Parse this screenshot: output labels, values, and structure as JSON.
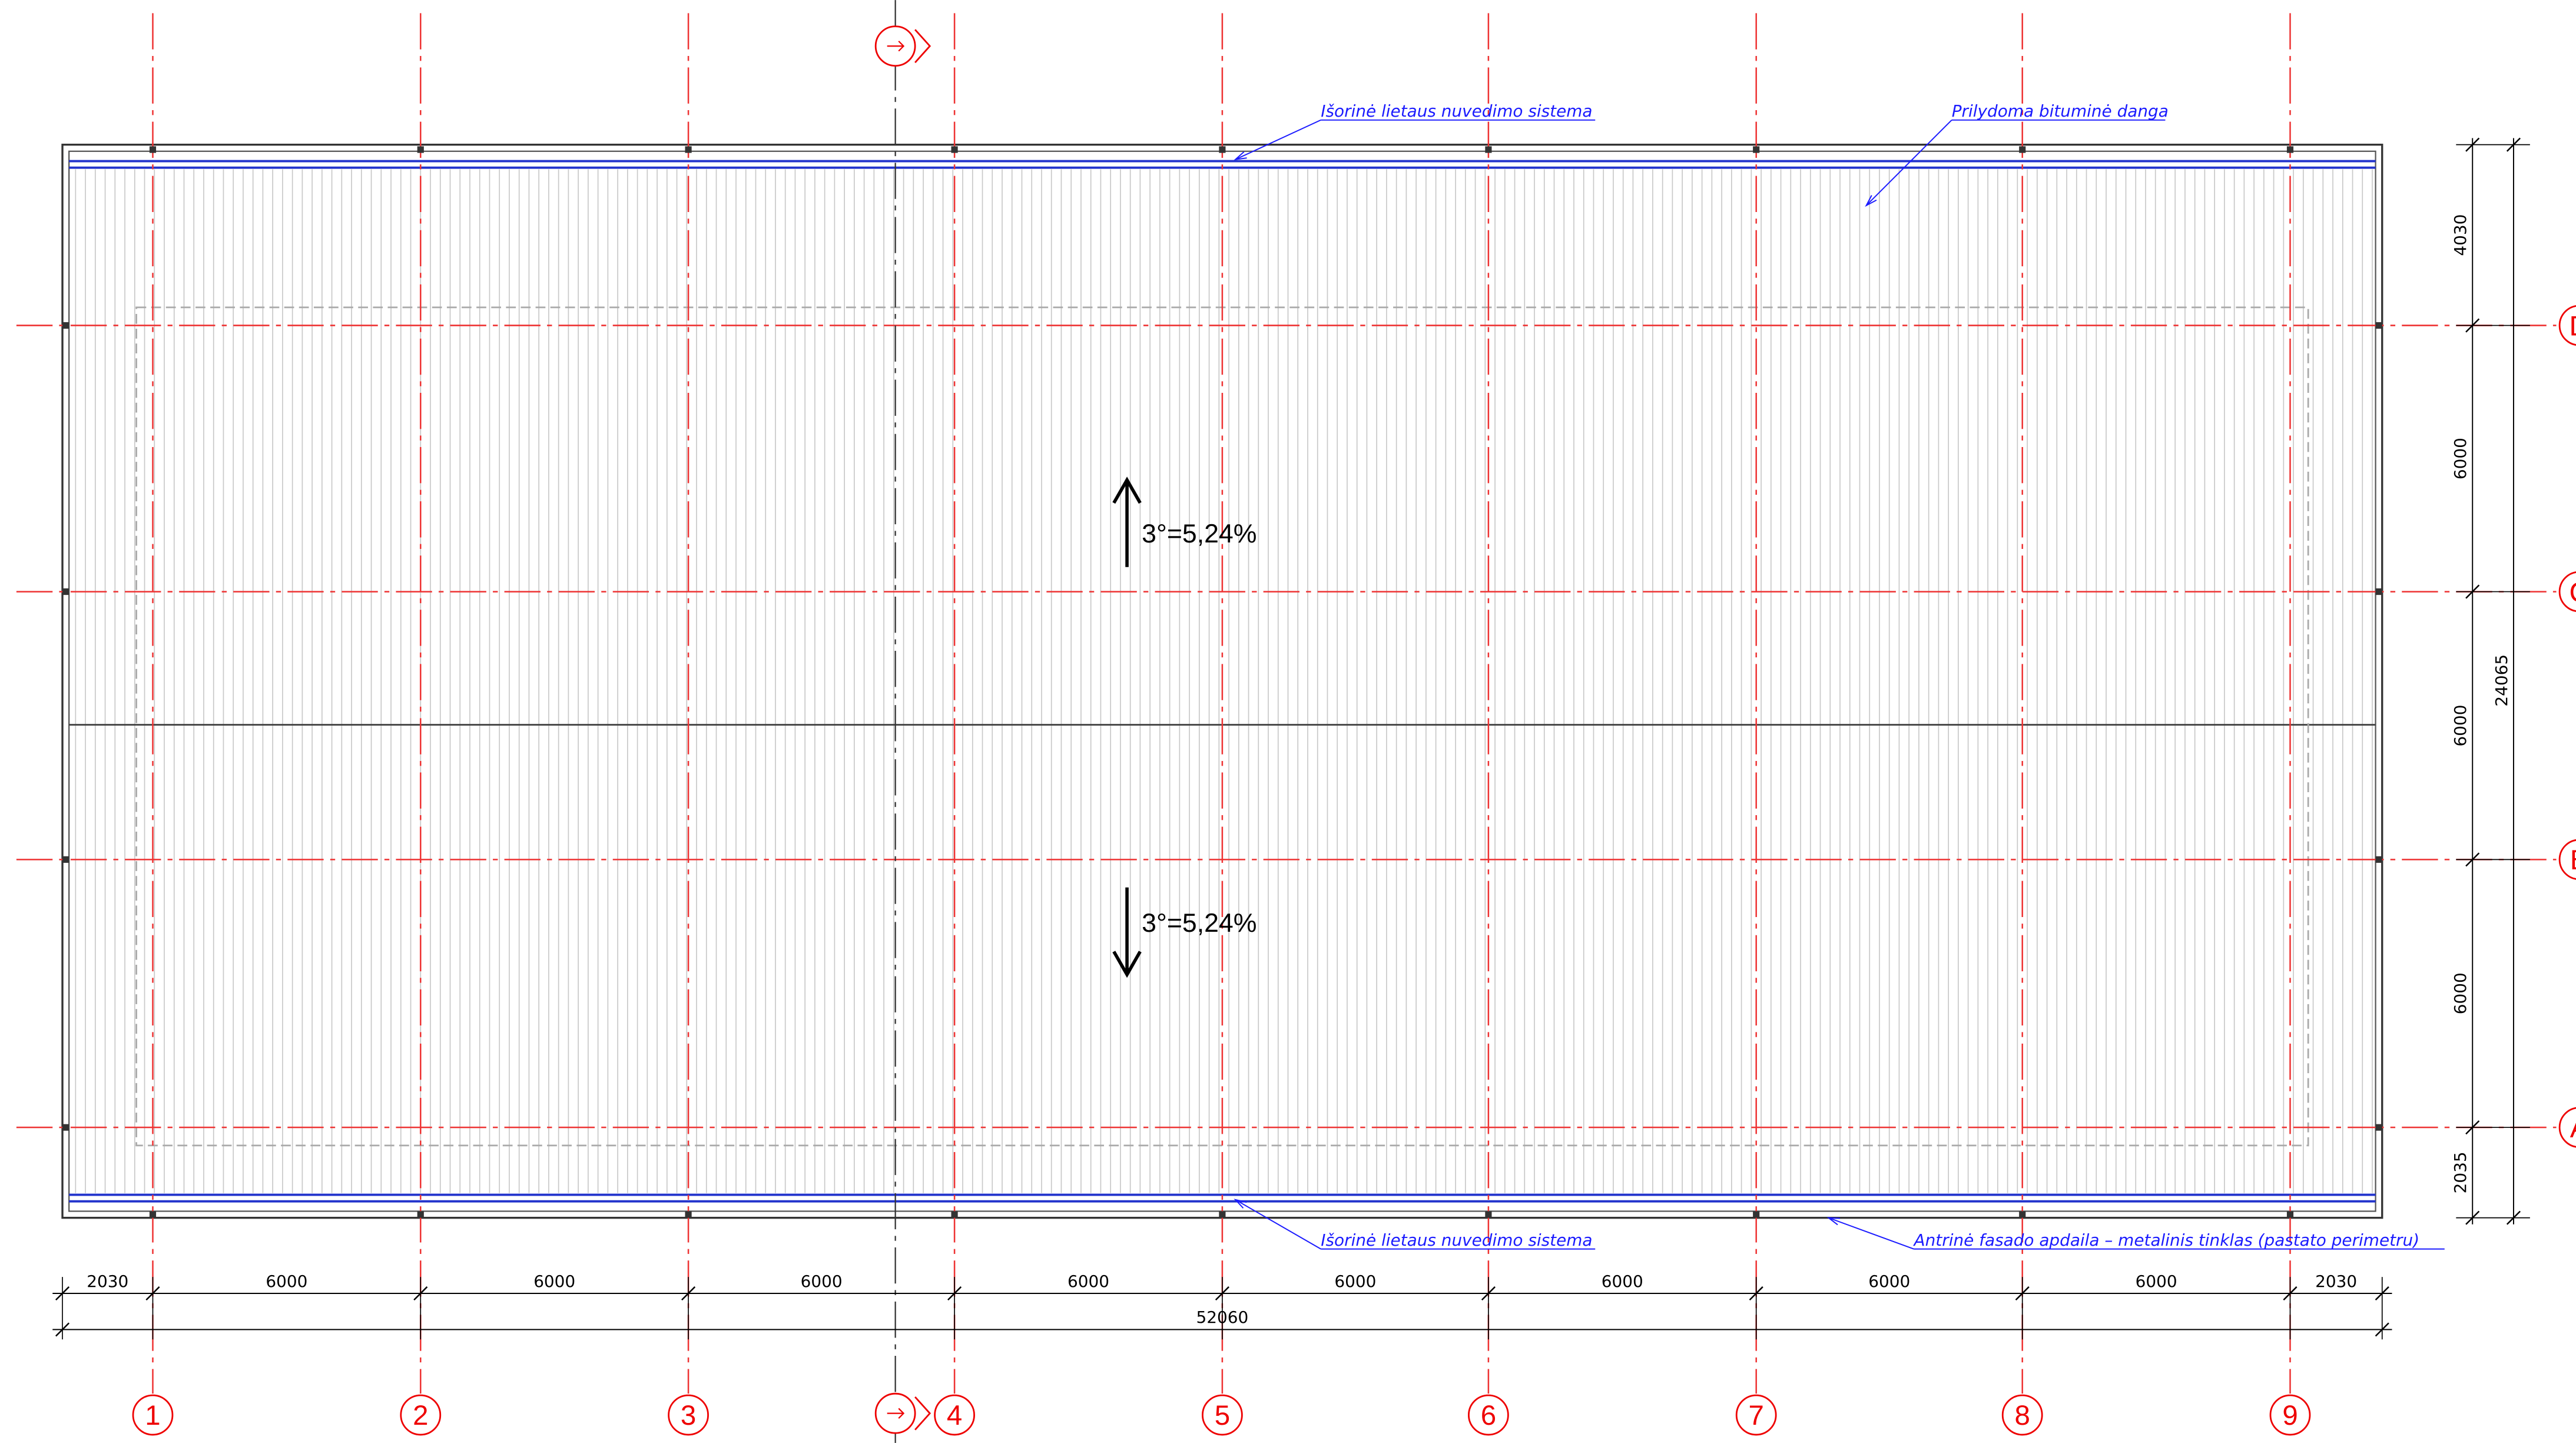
{
  "annotations": {
    "top_gutter": "Išorinė lietaus nuvedimo sistema",
    "roof_covering": "Prilydoma bituminė danga",
    "bottom_gutter": "Išorinė lietaus nuvedimo sistema",
    "facade": "Antrinė fasado apdaila – metalinis tinklas (pastato perimetru)"
  },
  "slopes": [
    "3°=5,24%",
    "3°=5,24%"
  ],
  "axes": {
    "columns": [
      "1",
      "2",
      "3",
      "4",
      "5",
      "6",
      "7",
      "8",
      "9"
    ],
    "rows": [
      "D",
      "C",
      "B",
      "A"
    ]
  },
  "dimensions": {
    "horizontal": [
      "2030",
      "6000",
      "6000",
      "6000",
      "6000",
      "6000",
      "6000",
      "6000",
      "6000",
      "2030"
    ],
    "horizontal_total": "52060",
    "vertical": [
      "4030",
      "6000",
      "6000",
      "6000",
      "2035"
    ],
    "vertical_total": "24065"
  }
}
